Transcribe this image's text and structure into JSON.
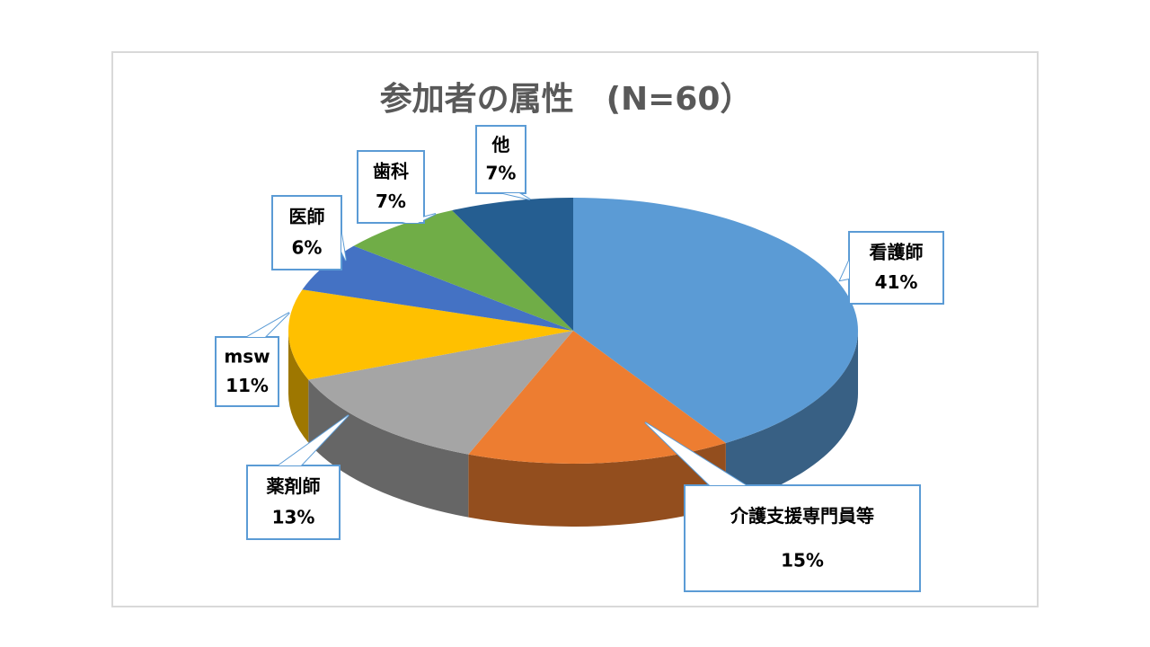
{
  "chart_data": {
    "type": "pie3d",
    "title": "参加者の属性　(N=60）",
    "categories": [
      "看護師",
      "介護支援専門員等",
      "薬剤師",
      "msw",
      "医師",
      "歯科",
      "他"
    ],
    "values": [
      41,
      15,
      13,
      11,
      6,
      7,
      7
    ],
    "value_labels": [
      "41%",
      "15%",
      "13%",
      "11%",
      "6%",
      "7%",
      "7%"
    ],
    "colors": [
      "#5b9bd5",
      "#ed7d31",
      "#a5a5a5",
      "#ffc000",
      "#4472c4",
      "#70ad47",
      "#255e91"
    ]
  }
}
